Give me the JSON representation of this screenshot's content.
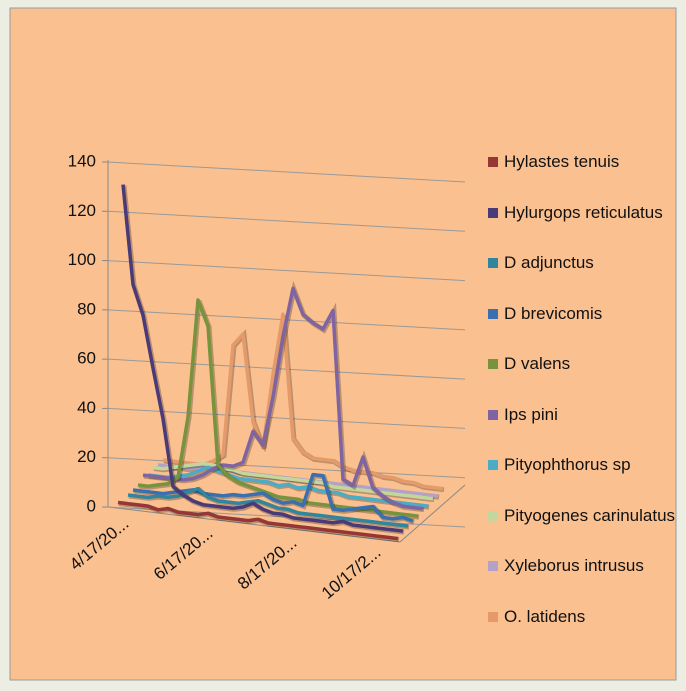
{
  "chart_data": {
    "type": "line3d",
    "categories": [
      "4/17/20...",
      null,
      null,
      null,
      null,
      null,
      null,
      null,
      "6/17/20...",
      null,
      null,
      null,
      null,
      null,
      null,
      null,
      "8/17/20...",
      null,
      null,
      null,
      null,
      null,
      null,
      null,
      "10/17/2...",
      null,
      null,
      null,
      null
    ],
    "ylim": [
      0,
      140
    ],
    "yticks": [
      0,
      20,
      40,
      60,
      80,
      100,
      120,
      140
    ],
    "grid": true,
    "legend": "right",
    "series": [
      {
        "name": "Hylastes tenuis",
        "color": "#953735",
        "values": [
          1,
          1,
          1,
          1,
          0,
          1,
          0,
          0,
          0,
          1,
          0,
          0,
          0,
          0,
          1,
          0,
          0,
          0,
          0,
          0,
          0,
          0,
          0,
          0,
          0,
          0,
          0,
          0,
          0
        ]
      },
      {
        "name": "Hylurgops reticulatus",
        "color": "#4b3a78",
        "values": [
          128,
          88,
          76,
          55,
          35,
          8,
          5,
          3,
          2,
          2,
          2,
          2,
          3,
          5,
          3,
          2,
          2,
          1,
          1,
          1,
          1,
          1,
          2,
          1,
          1,
          1,
          1,
          1,
          1
        ]
      },
      {
        "name": "D adjunctus",
        "color": "#31859c",
        "values": [
          0,
          0,
          0,
          1,
          1,
          2,
          4,
          6,
          3,
          2,
          2,
          2,
          3,
          4,
          3,
          2,
          2,
          1,
          1,
          1,
          1,
          1,
          1,
          1,
          1,
          1,
          1,
          1,
          1
        ]
      },
      {
        "name": "D brevicomis",
        "color": "#3a6fb0",
        "values": [
          0,
          0,
          0,
          0,
          1,
          2,
          3,
          2,
          2,
          2,
          3,
          3,
          4,
          5,
          3,
          2,
          3,
          2,
          15,
          15,
          2,
          2,
          3,
          4,
          5,
          1,
          1,
          2,
          1
        ]
      },
      {
        "name": "D valens",
        "color": "#77933c",
        "values": [
          0,
          0,
          1,
          2,
          5,
          30,
          78,
          68,
          12,
          8,
          6,
          5,
          4,
          3,
          2,
          2,
          2,
          1,
          1,
          1,
          1,
          1,
          1,
          1,
          1,
          1,
          1,
          1,
          1
        ]
      },
      {
        "name": "Ips pini",
        "color": "#8064a2",
        "values": [
          2,
          2,
          2,
          2,
          2,
          3,
          5,
          8,
          10,
          10,
          12,
          25,
          20,
          40,
          65,
          85,
          75,
          72,
          70,
          78,
          10,
          8,
          20,
          8,
          5,
          3,
          2,
          2,
          2
        ]
      },
      {
        "name": "Pityophthorus sp",
        "color": "#4bacc6",
        "values": [
          0,
          0,
          0,
          1,
          2,
          4,
          6,
          5,
          4,
          3,
          3,
          3,
          3,
          2,
          3,
          2,
          3,
          2,
          2,
          2,
          1,
          1,
          1,
          1,
          1,
          1,
          1,
          1,
          1
        ]
      },
      {
        "name": "Pityogenes carinulatus",
        "color": "#c3d69b",
        "values": [
          1,
          1,
          2,
          3,
          4,
          5,
          5,
          4,
          4,
          3,
          3,
          3,
          3,
          3,
          3,
          3,
          3,
          3,
          2,
          2,
          2,
          2,
          2,
          2,
          2,
          2,
          2,
          2,
          2
        ]
      },
      {
        "name": "Xyleborus intrusus",
        "color": "#b3a2c7",
        "values": [
          0,
          0,
          0,
          0,
          1,
          2,
          2,
          2,
          1,
          1,
          1,
          1,
          1,
          1,
          1,
          1,
          1,
          1,
          1,
          1,
          1,
          1,
          1,
          1,
          1,
          1,
          1,
          1,
          1
        ]
      },
      {
        "name": "O. latidens",
        "color": "#e59a6a",
        "values": [
          0,
          0,
          0,
          0,
          0,
          2,
          5,
          50,
          55,
          20,
          10,
          40,
          65,
          15,
          10,
          8,
          8,
          8,
          6,
          5,
          5,
          5,
          4,
          4,
          3,
          3,
          2,
          2,
          2
        ]
      }
    ]
  }
}
